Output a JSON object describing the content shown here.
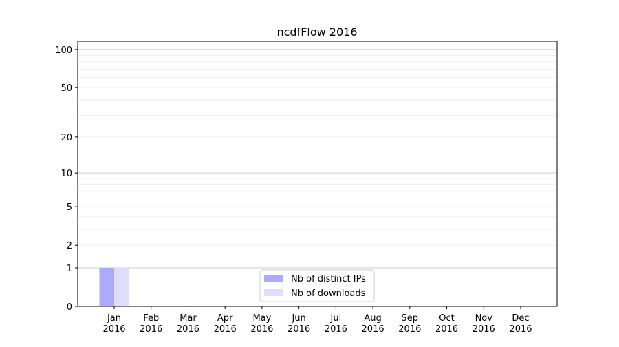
{
  "chart_data": {
    "type": "bar",
    "title": "ncdfFlow 2016",
    "categories": [
      "Jan\n2016",
      "Feb\n2016",
      "Mar\n2016",
      "Apr\n2016",
      "May\n2016",
      "Jun\n2016",
      "Jul\n2016",
      "Aug\n2016",
      "Sep\n2016",
      "Oct\n2016",
      "Nov\n2016",
      "Dec\n2016"
    ],
    "series": [
      {
        "name": "Nb of distinct IPs",
        "color": "#aaaaff",
        "values": [
          1,
          0,
          0,
          0,
          0,
          0,
          0,
          0,
          0,
          0,
          0,
          0
        ]
      },
      {
        "name": "Nb of downloads",
        "color": "#ddddff",
        "values": [
          1,
          0,
          0,
          0,
          0,
          0,
          0,
          0,
          0,
          0,
          0,
          0
        ]
      }
    ],
    "yscale": "log10(1+y)",
    "ylim": [
      0,
      116
    ],
    "yticks": [
      0,
      1,
      2,
      5,
      10,
      20,
      50,
      100
    ],
    "grid": true,
    "legend_placement": "lower-center"
  }
}
